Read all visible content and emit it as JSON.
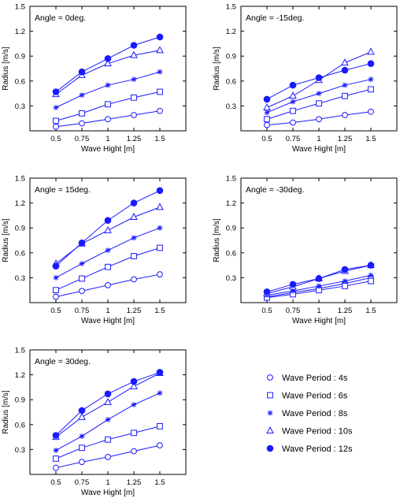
{
  "legend": {
    "items": [
      {
        "label": "Wave Period : 4s",
        "marker": "circle-open"
      },
      {
        "label": "Wave Period : 6s",
        "marker": "square-open"
      },
      {
        "label": "Wave Period : 8s",
        "marker": "star"
      },
      {
        "label": "Wave Period : 10s",
        "marker": "triangle-open"
      },
      {
        "label": "Wave Period : 12s",
        "marker": "circle-filled"
      }
    ]
  },
  "colors": {
    "series": "#1a1aff",
    "axes": "#000000"
  },
  "chart_data": [
    {
      "type": "line",
      "annotation": "Angle = 0deg.",
      "xlabel": "Wave Hight [m]",
      "ylabel": "Radius [m/s]",
      "xlim": [
        0.25,
        1.75
      ],
      "ylim": [
        0,
        1.5
      ],
      "xticks": [
        0.5,
        0.75,
        1,
        1.25,
        1.5
      ],
      "xtick_labels": [
        "0.5",
        "0.75",
        "1",
        "1.25",
        "1.5"
      ],
      "yticks": [
        0.3,
        0.6,
        0.9,
        1.2,
        1.5
      ],
      "ytick_labels": [
        "0.3",
        "0.6",
        "0.9",
        "1.2",
        "1.5"
      ],
      "grid": false,
      "x": [
        0.5,
        0.75,
        1,
        1.25,
        1.5
      ],
      "series": [
        {
          "name": "Wave Period : 4s",
          "values": [
            0.05,
            0.09,
            0.14,
            0.19,
            0.24
          ]
        },
        {
          "name": "Wave Period : 6s",
          "values": [
            0.12,
            0.21,
            0.32,
            0.4,
            0.47
          ]
        },
        {
          "name": "Wave Period : 8s",
          "values": [
            0.28,
            0.43,
            0.55,
            0.62,
            0.71
          ]
        },
        {
          "name": "Wave Period : 10s",
          "values": [
            0.44,
            0.67,
            0.81,
            0.91,
            0.97
          ]
        },
        {
          "name": "Wave Period : 12s",
          "values": [
            0.47,
            0.71,
            0.87,
            1.03,
            1.13
          ]
        }
      ]
    },
    {
      "type": "line",
      "annotation": "Angle = -15deg.",
      "xlabel": "Wave Hight [m]",
      "ylabel": "Radius [m/s]",
      "xlim": [
        0.25,
        1.75
      ],
      "ylim": [
        0,
        1.5
      ],
      "xticks": [
        0.5,
        0.75,
        1,
        1.25,
        1.5
      ],
      "xtick_labels": [
        "0.5",
        "0.75",
        "1",
        "1.25",
        "1.5"
      ],
      "yticks": [
        0.3,
        0.6,
        0.9,
        1.2,
        1.5
      ],
      "ytick_labels": [
        "0.3",
        "0.6",
        "0.9",
        "1.2",
        "1.5"
      ],
      "grid": false,
      "x": [
        0.5,
        0.75,
        1,
        1.25,
        1.5
      ],
      "series": [
        {
          "name": "Wave Period : 4s",
          "values": [
            0.07,
            0.1,
            0.14,
            0.19,
            0.23
          ]
        },
        {
          "name": "Wave Period : 6s",
          "values": [
            0.14,
            0.24,
            0.33,
            0.42,
            0.5
          ]
        },
        {
          "name": "Wave Period : 8s",
          "values": [
            0.22,
            0.35,
            0.45,
            0.55,
            0.62
          ]
        },
        {
          "name": "Wave Period : 10s",
          "values": [
            0.28,
            0.42,
            0.61,
            0.82,
            0.95
          ]
        },
        {
          "name": "Wave Period : 12s",
          "values": [
            0.38,
            0.55,
            0.64,
            0.73,
            0.81
          ]
        }
      ]
    },
    {
      "type": "line",
      "annotation": "Angle = 15deg.",
      "xlabel": "Wave Hight [m]",
      "ylabel": "Radius [m/s]",
      "xlim": [
        0.25,
        1.75
      ],
      "ylim": [
        0,
        1.5
      ],
      "xticks": [
        0.5,
        0.75,
        1,
        1.25,
        1.5
      ],
      "xtick_labels": [
        "0.5",
        "0.75",
        "1",
        "1.25",
        "1.5"
      ],
      "yticks": [
        0.3,
        0.6,
        0.9,
        1.2,
        1.5
      ],
      "ytick_labels": [
        "0.3",
        "0.6",
        "0.9",
        "1.2",
        "1.5"
      ],
      "grid": false,
      "x": [
        0.5,
        0.75,
        1,
        1.25,
        1.5
      ],
      "series": [
        {
          "name": "Wave Period : 4s",
          "values": [
            0.07,
            0.14,
            0.21,
            0.28,
            0.34
          ]
        },
        {
          "name": "Wave Period : 6s",
          "values": [
            0.15,
            0.29,
            0.43,
            0.56,
            0.66
          ]
        },
        {
          "name": "Wave Period : 8s",
          "values": [
            0.3,
            0.47,
            0.63,
            0.78,
            0.9
          ]
        },
        {
          "name": "Wave Period : 10s",
          "values": [
            0.47,
            0.71,
            0.87,
            1.03,
            1.15
          ]
        },
        {
          "name": "Wave Period : 12s",
          "values": [
            0.44,
            0.72,
            0.99,
            1.2,
            1.35
          ]
        }
      ]
    },
    {
      "type": "line",
      "annotation": "Angle = -30deg.",
      "xlabel": "Wave Hight [m]",
      "ylabel": "Radius [m/s]",
      "xlim": [
        0.25,
        1.75
      ],
      "ylim": [
        0,
        1.5
      ],
      "xticks": [
        0.5,
        0.75,
        1,
        1.25,
        1.5
      ],
      "xtick_labels": [
        "0.5",
        "0.75",
        "1",
        "1.25",
        "1.5"
      ],
      "yticks": [
        0.3,
        0.6,
        0.9,
        1.2,
        1.5
      ],
      "ytick_labels": [
        "0.3",
        "0.6",
        "0.9",
        "1.2",
        "1.5"
      ],
      "grid": false,
      "x": [
        0.5,
        0.75,
        1,
        1.25,
        1.5
      ],
      "series": [
        {
          "name": "Wave Period : 4s",
          "values": [
            0.07,
            0.12,
            0.17,
            0.23,
            0.3
          ]
        },
        {
          "name": "Wave Period : 6s",
          "values": [
            0.06,
            0.1,
            0.15,
            0.2,
            0.26
          ]
        },
        {
          "name": "Wave Period : 8s",
          "values": [
            0.09,
            0.14,
            0.2,
            0.26,
            0.33
          ]
        },
        {
          "name": "Wave Period : 10s",
          "values": [
            0.11,
            0.19,
            0.29,
            0.38,
            0.45
          ]
        },
        {
          "name": "Wave Period : 12s",
          "values": [
            0.13,
            0.22,
            0.29,
            0.4,
            0.45
          ]
        }
      ]
    },
    {
      "type": "line",
      "annotation": "Angle = 30deg.",
      "xlabel": "Wave Hight [m]",
      "ylabel": "Radius [m/s]",
      "xlim": [
        0.25,
        1.75
      ],
      "ylim": [
        0,
        1.5
      ],
      "xticks": [
        0.5,
        0.75,
        1,
        1.25,
        1.5
      ],
      "xtick_labels": [
        "0.5",
        "0.75",
        "1",
        "1.25",
        "1.5"
      ],
      "yticks": [
        0.3,
        0.6,
        0.9,
        1.2,
        1.5
      ],
      "ytick_labels": [
        "0.3",
        "0.6",
        "0.9",
        "1.2",
        "1.5"
      ],
      "grid": false,
      "x": [
        0.5,
        0.75,
        1,
        1.25,
        1.5
      ],
      "series": [
        {
          "name": "Wave Period : 4s",
          "values": [
            0.08,
            0.15,
            0.21,
            0.28,
            0.35
          ]
        },
        {
          "name": "Wave Period : 6s",
          "values": [
            0.19,
            0.32,
            0.42,
            0.5,
            0.58
          ]
        },
        {
          "name": "Wave Period : 8s",
          "values": [
            0.29,
            0.46,
            0.66,
            0.84,
            0.98
          ]
        },
        {
          "name": "Wave Period : 10s",
          "values": [
            0.45,
            0.69,
            0.87,
            1.06,
            1.22
          ]
        },
        {
          "name": "Wave Period : 12s",
          "values": [
            0.47,
            0.77,
            0.97,
            1.12,
            1.23
          ]
        }
      ]
    }
  ]
}
